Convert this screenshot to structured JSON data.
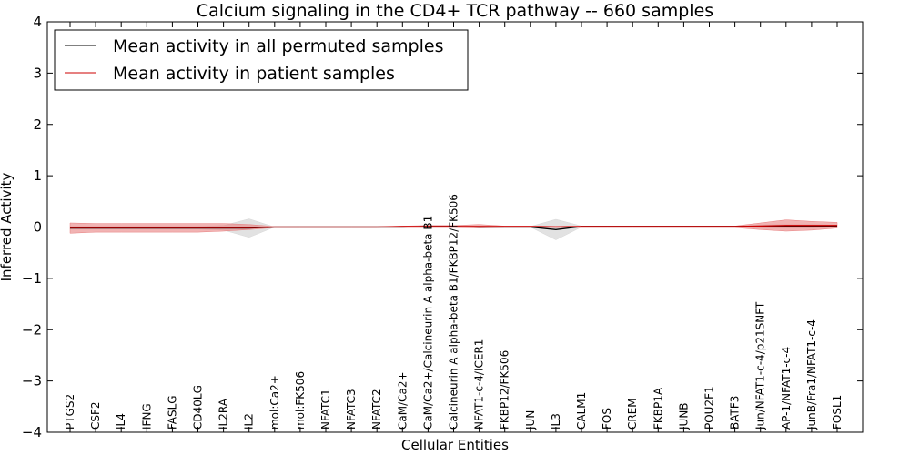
{
  "chart_data": {
    "type": "line",
    "title": "Calcium signaling in the CD4+ TCR pathway -- 660 samples",
    "xlabel": "Cellular Entities",
    "ylabel": "Inferred Activity",
    "ylim": [
      -4,
      4
    ],
    "yticks": [
      -4,
      -3,
      -2,
      -1,
      0,
      1,
      2,
      3,
      4
    ],
    "ytick_labels": [
      "−4",
      "−3",
      "−2",
      "−1",
      "0",
      "1",
      "2",
      "3",
      "4"
    ],
    "grid": false,
    "legend_position": "top-left",
    "categories": [
      "PTGS2",
      "CSF2",
      "IL4",
      "IFNG",
      "FASLG",
      "CD40LG",
      "IL2RA",
      "IL2",
      "mol:Ca2+",
      "mol:FK506",
      "NFATC1",
      "NFATC3",
      "NFATC2",
      "CaM/Ca2+",
      "CaM/Ca2+/Calcineurin A alpha-beta B1",
      "Calcineurin A alpha-beta B1/FKBP12/FK506",
      "NFAT1-c-4/ICER1",
      "FKBP12/FK506",
      "JUN",
      "IL3",
      "CALM1",
      "FOS",
      "CREM",
      "FKBP1A",
      "JUNB",
      "POU2F1",
      "BATF3",
      "Jun/NFAT1-c-4/p21SNFT",
      "AP-1/NFAT1-c-4",
      "JunB/Fra1/NFAT1-c-4",
      "FOSL1"
    ],
    "series": [
      {
        "name": "Mean activity in all permuted samples",
        "color": "#000000",
        "values": [
          -0.02,
          -0.02,
          -0.02,
          -0.02,
          -0.02,
          -0.02,
          -0.02,
          -0.02,
          0.0,
          0.0,
          0.0,
          0.0,
          0.0,
          0.0,
          0.01,
          0.01,
          0.0,
          0.0,
          0.0,
          -0.05,
          0.01,
          0.01,
          0.01,
          0.01,
          0.01,
          0.01,
          0.01,
          0.01,
          0.01,
          0.01,
          0.02
        ],
        "band_lower": [
          -0.04,
          -0.04,
          -0.04,
          -0.04,
          -0.04,
          -0.04,
          -0.06,
          -0.2,
          0.0,
          0.0,
          0.0,
          0.0,
          0.0,
          0.0,
          0.0,
          0.0,
          -0.02,
          0.0,
          0.0,
          -0.25,
          0.0,
          0.0,
          0.0,
          0.0,
          0.0,
          0.0,
          0.0,
          -0.02,
          -0.02,
          -0.02,
          0.0
        ],
        "band_upper": [
          0.01,
          0.01,
          0.01,
          0.01,
          0.01,
          0.01,
          0.03,
          0.16,
          0.0,
          0.01,
          0.01,
          0.01,
          0.01,
          0.01,
          0.03,
          0.03,
          0.02,
          0.01,
          0.01,
          0.15,
          0.02,
          0.02,
          0.02,
          0.02,
          0.02,
          0.02,
          0.02,
          0.04,
          0.05,
          0.05,
          0.04
        ],
        "band_color": "#d8d8d8"
      },
      {
        "name": "Mean activity in patient samples",
        "color": "#cc0000",
        "values": [
          -0.01,
          -0.01,
          -0.01,
          -0.01,
          -0.01,
          -0.01,
          -0.01,
          -0.01,
          0.0,
          0.0,
          0.0,
          0.0,
          0.0,
          0.01,
          0.01,
          0.01,
          0.01,
          0.01,
          0.01,
          0.0,
          0.01,
          0.01,
          0.01,
          0.01,
          0.01,
          0.01,
          0.01,
          0.02,
          0.03,
          0.03,
          0.03
        ],
        "band_lower": [
          -0.12,
          -0.1,
          -0.1,
          -0.1,
          -0.1,
          -0.1,
          -0.08,
          -0.05,
          -0.01,
          -0.01,
          -0.01,
          -0.01,
          -0.01,
          -0.01,
          -0.01,
          -0.01,
          -0.02,
          -0.01,
          -0.01,
          -0.01,
          -0.01,
          -0.01,
          -0.01,
          -0.01,
          -0.01,
          -0.01,
          -0.01,
          -0.05,
          -0.08,
          -0.06,
          -0.02
        ],
        "band_upper": [
          0.08,
          0.07,
          0.07,
          0.07,
          0.07,
          0.07,
          0.07,
          0.05,
          0.01,
          0.01,
          0.01,
          0.01,
          0.01,
          0.02,
          0.03,
          0.03,
          0.05,
          0.02,
          0.02,
          0.02,
          0.02,
          0.02,
          0.02,
          0.02,
          0.02,
          0.02,
          0.02,
          0.08,
          0.14,
          0.11,
          0.09
        ],
        "band_color": "#e88080"
      }
    ]
  }
}
